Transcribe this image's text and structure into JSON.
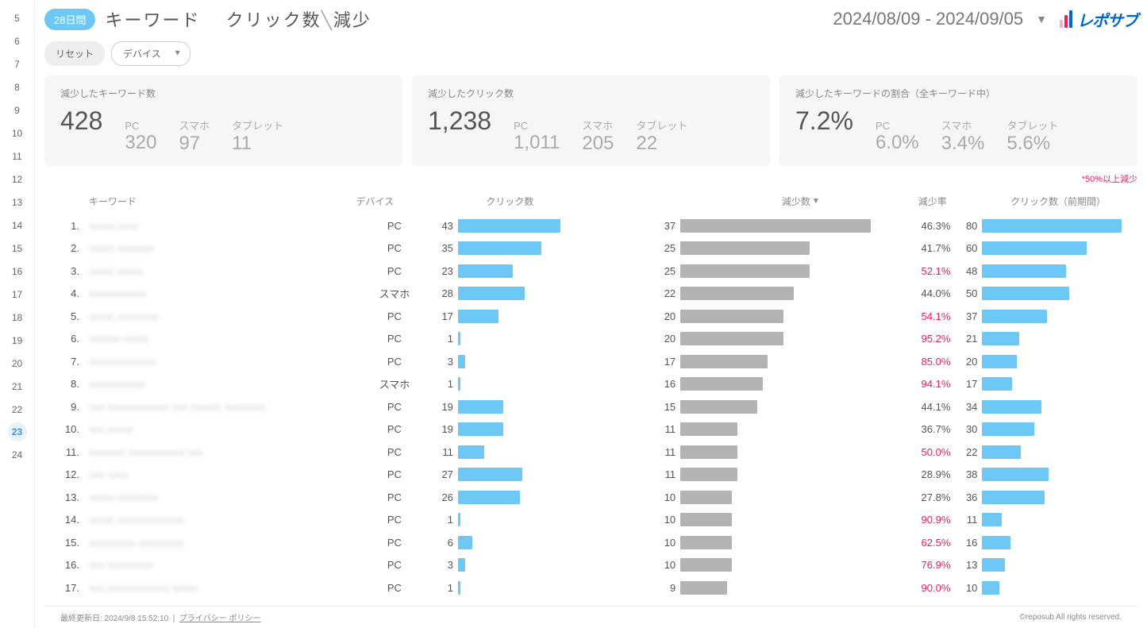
{
  "sidebar": {
    "items": [
      "5",
      "6",
      "7",
      "8",
      "9",
      "10",
      "11",
      "12",
      "13",
      "14",
      "15",
      "16",
      "17",
      "18",
      "19",
      "20",
      "21",
      "22",
      "23",
      "24"
    ],
    "active_index": 18
  },
  "header": {
    "badge": "28日間",
    "title_kw": "キーワード",
    "title_metric": "クリック数",
    "title_dir": "減少",
    "date_range": "2024/08/09 - 2024/09/05",
    "logo_text": "レポサブ",
    "logo_bars": [
      {
        "h": 10,
        "c": "#f7b0c8"
      },
      {
        "h": 16,
        "c": "#e91e63"
      },
      {
        "h": 22,
        "c": "#0066cc"
      }
    ]
  },
  "controls": {
    "reset": "リセット",
    "device": "デバイス"
  },
  "cards": [
    {
      "label": "減少したキーワード数",
      "main": "428",
      "subs": [
        {
          "l": "PC",
          "v": "320"
        },
        {
          "l": "スマホ",
          "v": "97"
        },
        {
          "l": "タブレット",
          "v": "11"
        }
      ]
    },
    {
      "label": "減少したクリック数",
      "main": "1,238",
      "subs": [
        {
          "l": "PC",
          "v": "1,011"
        },
        {
          "l": "スマホ",
          "v": "205"
        },
        {
          "l": "タブレット",
          "v": "22"
        }
      ]
    },
    {
      "label": "減少したキーワードの割合（全キーワード中）",
      "main": "7.2%",
      "subs": [
        {
          "l": "PC",
          "v": "6.0%"
        },
        {
          "l": "スマホ",
          "v": "3.4%"
        },
        {
          "l": "タブレット",
          "v": "5.6%"
        }
      ]
    }
  ],
  "note": "*50%以上減少",
  "columns": {
    "kw": "キーワード",
    "dev": "デバイス",
    "click": "クリック数",
    "dec": "減少数",
    "rate": "減少率",
    "prev": "クリック数（前期間）"
  },
  "bar_colors": {
    "click": "#6ec8f5",
    "dec": "#b3b3b3",
    "prev": "#6ec8f5"
  },
  "max_values": {
    "click": 80,
    "dec": 37,
    "prev": 80
  },
  "rate_threshold": 50.0,
  "rows": [
    {
      "i": "1.",
      "kw": "xxxxx xxxx",
      "dev": "PC",
      "click": 43,
      "dec": 37,
      "rate": "46.3%",
      "rate_v": 46.3,
      "prev": 80
    },
    {
      "i": "2.",
      "kw": "xxxxx xxxxxxx",
      "dev": "PC",
      "click": 35,
      "dec": 25,
      "rate": "41.7%",
      "rate_v": 41.7,
      "prev": 60
    },
    {
      "i": "3.",
      "kw": "xxxxx xxxxx",
      "dev": "PC",
      "click": 23,
      "dec": 25,
      "rate": "52.1%",
      "rate_v": 52.1,
      "prev": 48
    },
    {
      "i": "4.",
      "kw": "xxxxxxxxxxx",
      "dev": "スマホ",
      "click": 28,
      "dec": 22,
      "rate": "44.0%",
      "rate_v": 44.0,
      "prev": 50
    },
    {
      "i": "5.",
      "kw": "xxxxx xxxxxxxx",
      "dev": "PC",
      "click": 17,
      "dec": 20,
      "rate": "54.1%",
      "rate_v": 54.1,
      "prev": 37
    },
    {
      "i": "6.",
      "kw": "xxxxxx xxxxx",
      "dev": "PC",
      "click": 1,
      "dec": 20,
      "rate": "95.2%",
      "rate_v": 95.2,
      "prev": 21
    },
    {
      "i": "7.",
      "kw": "xxxxxxxxxxxxx",
      "dev": "PC",
      "click": 3,
      "dec": 17,
      "rate": "85.0%",
      "rate_v": 85.0,
      "prev": 20
    },
    {
      "i": "8.",
      "kw": "xxxxxxxxxxx",
      "dev": "スマホ",
      "click": 1,
      "dec": 16,
      "rate": "94.1%",
      "rate_v": 94.1,
      "prev": 17
    },
    {
      "i": "9.",
      "kw": "xxx xxxxxxxxxxxx xxx xxxxxx xxxxxxxx",
      "dev": "PC",
      "click": 19,
      "dec": 15,
      "rate": "44.1%",
      "rate_v": 44.1,
      "prev": 34
    },
    {
      "i": "10.",
      "kw": "xxx xxxxx",
      "dev": "PC",
      "click": 19,
      "dec": 11,
      "rate": "36.7%",
      "rate_v": 36.7,
      "prev": 30
    },
    {
      "i": "11.",
      "kw": "xxxxxxx xxxxxxxxxxx xxx",
      "dev": "PC",
      "click": 11,
      "dec": 11,
      "rate": "50.0%",
      "rate_v": 50.0,
      "prev": 22
    },
    {
      "i": "12.",
      "kw": "xxx xxxx",
      "dev": "PC",
      "click": 27,
      "dec": 11,
      "rate": "28.9%",
      "rate_v": 28.9,
      "prev": 38
    },
    {
      "i": "13.",
      "kw": "xxxxx xxxxxxxx",
      "dev": "PC",
      "click": 26,
      "dec": 10,
      "rate": "27.8%",
      "rate_v": 27.8,
      "prev": 36
    },
    {
      "i": "14.",
      "kw": "xxxxx xxxxxxxxxxxxx",
      "dev": "PC",
      "click": 1,
      "dec": 10,
      "rate": "90.9%",
      "rate_v": 90.9,
      "prev": 11
    },
    {
      "i": "15.",
      "kw": "xxxxxxxxx xxxxxxxxx",
      "dev": "PC",
      "click": 6,
      "dec": 10,
      "rate": "62.5%",
      "rate_v": 62.5,
      "prev": 16
    },
    {
      "i": "16.",
      "kw": "xxx xxxxxxxxx",
      "dev": "PC",
      "click": 3,
      "dec": 10,
      "rate": "76.9%",
      "rate_v": 76.9,
      "prev": 13
    },
    {
      "i": "17.",
      "kw": "xxx xxxxxxxxxxxx xxxxx",
      "dev": "PC",
      "click": 1,
      "dec": 9,
      "rate": "90.0%",
      "rate_v": 90.0,
      "prev": 10
    }
  ],
  "footer": {
    "updated": "最終更新日: 2024/9/8 15:52:10",
    "privacy": "プライバシー ポリシー",
    "copyright": "©reposub All rights reserved."
  }
}
